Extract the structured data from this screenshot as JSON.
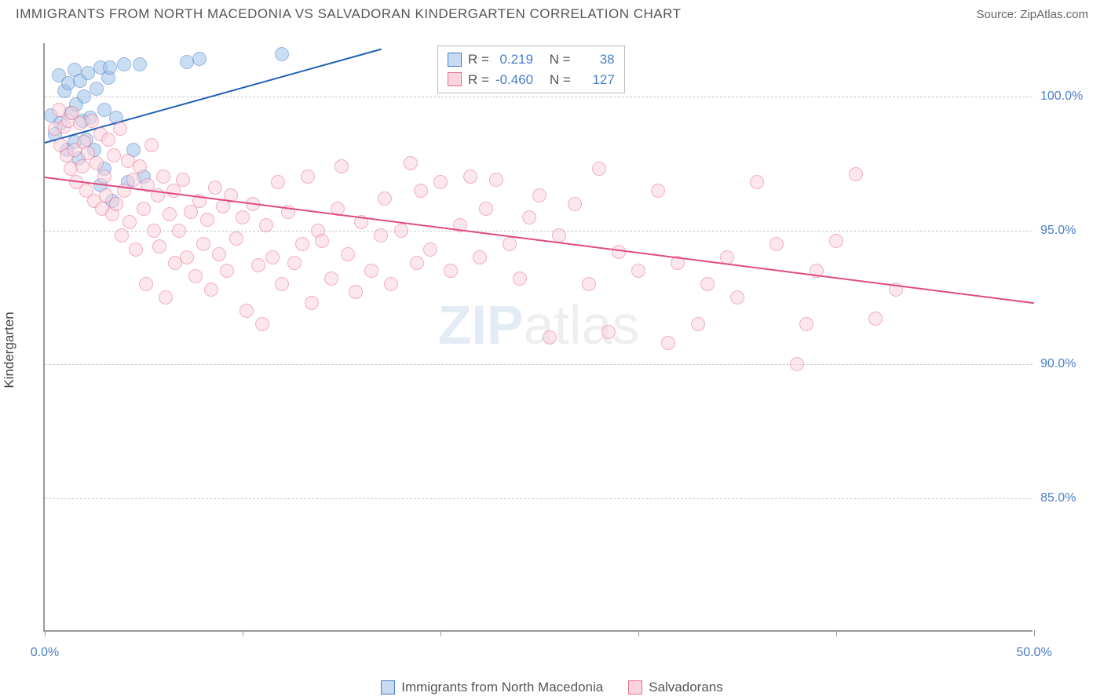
{
  "header": {
    "title": "IMMIGRANTS FROM NORTH MACEDONIA VS SALVADORAN KINDERGARTEN CORRELATION CHART",
    "source": "Source: ZipAtlas.com"
  },
  "chart": {
    "type": "scatter",
    "ylabel": "Kindergarten",
    "xlim": [
      0,
      50
    ],
    "ylim": [
      80,
      102
    ],
    "xtick_positions": [
      0,
      10,
      20,
      30,
      40,
      50
    ],
    "xtick_labels": {
      "first": "0.0%",
      "last": "50.0%"
    },
    "ytick_positions": [
      85,
      90,
      95,
      100
    ],
    "ytick_labels": [
      "85.0%",
      "90.0%",
      "95.0%",
      "100.0%"
    ],
    "grid_color": "#cccccc",
    "axis_color": "#999999",
    "background_color": "#ffffff",
    "series": [
      {
        "name": "Immigrants from North Macedonia",
        "color_fill": "#9ec3eb",
        "color_stroke": "#4a7ec7",
        "R": "0.219",
        "N": "38",
        "trend": {
          "x1": 0,
          "y1": 98.3,
          "x2": 17,
          "y2": 101.8,
          "color": "#1f5fb8"
        },
        "points": [
          [
            0.3,
            99.3
          ],
          [
            0.5,
            98.6
          ],
          [
            0.7,
            100.8
          ],
          [
            0.8,
            99.0
          ],
          [
            1.0,
            100.2
          ],
          [
            1.1,
            98.0
          ],
          [
            1.2,
            100.5
          ],
          [
            1.3,
            99.4
          ],
          [
            1.5,
            101.0
          ],
          [
            1.5,
            98.3
          ],
          [
            1.6,
            99.7
          ],
          [
            1.7,
            97.7
          ],
          [
            1.8,
            100.6
          ],
          [
            1.9,
            99.1
          ],
          [
            2.0,
            100.0
          ],
          [
            2.1,
            98.4
          ],
          [
            2.2,
            100.9
          ],
          [
            2.3,
            99.2
          ],
          [
            2.5,
            98.0
          ],
          [
            2.6,
            100.3
          ],
          [
            2.8,
            96.7
          ],
          [
            2.8,
            101.1
          ],
          [
            3.0,
            99.5
          ],
          [
            3.0,
            97.3
          ],
          [
            3.2,
            100.7
          ],
          [
            3.3,
            101.1
          ],
          [
            3.4,
            96.1
          ],
          [
            3.6,
            99.2
          ],
          [
            4.0,
            101.2
          ],
          [
            4.2,
            96.8
          ],
          [
            4.5,
            98.0
          ],
          [
            4.8,
            101.2
          ],
          [
            5.0,
            97.0
          ],
          [
            7.2,
            101.3
          ],
          [
            7.8,
            101.4
          ],
          [
            12.0,
            101.6
          ]
        ]
      },
      {
        "name": "Salvadorans",
        "color_fill": "#fbd4de",
        "color_stroke": "#e76f94",
        "R": "-0.460",
        "N": "127",
        "trend": {
          "x1": 0,
          "y1": 97.0,
          "x2": 50,
          "y2": 92.3,
          "color": "#e14b7b"
        },
        "points": [
          [
            0.5,
            98.8
          ],
          [
            0.7,
            99.5
          ],
          [
            0.8,
            98.2
          ],
          [
            1.0,
            98.9
          ],
          [
            1.1,
            97.8
          ],
          [
            1.2,
            99.1
          ],
          [
            1.3,
            97.3
          ],
          [
            1.4,
            99.4
          ],
          [
            1.5,
            98.0
          ],
          [
            1.6,
            96.8
          ],
          [
            1.8,
            99.0
          ],
          [
            1.9,
            97.4
          ],
          [
            2.0,
            98.3
          ],
          [
            2.1,
            96.5
          ],
          [
            2.2,
            97.9
          ],
          [
            2.4,
            99.1
          ],
          [
            2.5,
            96.1
          ],
          [
            2.6,
            97.5
          ],
          [
            2.8,
            98.6
          ],
          [
            2.9,
            95.8
          ],
          [
            3.0,
            97.0
          ],
          [
            3.1,
            96.3
          ],
          [
            3.2,
            98.4
          ],
          [
            3.4,
            95.6
          ],
          [
            3.5,
            97.8
          ],
          [
            3.6,
            96.0
          ],
          [
            3.8,
            98.8
          ],
          [
            3.9,
            94.8
          ],
          [
            4.0,
            96.5
          ],
          [
            4.2,
            97.6
          ],
          [
            4.3,
            95.3
          ],
          [
            4.5,
            96.9
          ],
          [
            4.6,
            94.3
          ],
          [
            4.8,
            97.4
          ],
          [
            5.0,
            95.8
          ],
          [
            5.1,
            93.0
          ],
          [
            5.2,
            96.7
          ],
          [
            5.4,
            98.2
          ],
          [
            5.5,
            95.0
          ],
          [
            5.7,
            96.3
          ],
          [
            5.8,
            94.4
          ],
          [
            6.0,
            97.0
          ],
          [
            6.1,
            92.5
          ],
          [
            6.3,
            95.6
          ],
          [
            6.5,
            96.5
          ],
          [
            6.6,
            93.8
          ],
          [
            6.8,
            95.0
          ],
          [
            7.0,
            96.9
          ],
          [
            7.2,
            94.0
          ],
          [
            7.4,
            95.7
          ],
          [
            7.6,
            93.3
          ],
          [
            7.8,
            96.1
          ],
          [
            8.0,
            94.5
          ],
          [
            8.2,
            95.4
          ],
          [
            8.4,
            92.8
          ],
          [
            8.6,
            96.6
          ],
          [
            8.8,
            94.1
          ],
          [
            9.0,
            95.9
          ],
          [
            9.2,
            93.5
          ],
          [
            9.4,
            96.3
          ],
          [
            9.7,
            94.7
          ],
          [
            10.0,
            95.5
          ],
          [
            10.2,
            92.0
          ],
          [
            10.5,
            96.0
          ],
          [
            10.8,
            93.7
          ],
          [
            11.0,
            91.5
          ],
          [
            11.2,
            95.2
          ],
          [
            11.5,
            94.0
          ],
          [
            11.8,
            96.8
          ],
          [
            12.0,
            93.0
          ],
          [
            12.3,
            95.7
          ],
          [
            12.6,
            93.8
          ],
          [
            13.0,
            94.5
          ],
          [
            13.3,
            97.0
          ],
          [
            13.5,
            92.3
          ],
          [
            13.8,
            95.0
          ],
          [
            14.0,
            94.6
          ],
          [
            14.5,
            93.2
          ],
          [
            14.8,
            95.8
          ],
          [
            15.0,
            97.4
          ],
          [
            15.3,
            94.1
          ],
          [
            15.7,
            92.7
          ],
          [
            16.0,
            95.3
          ],
          [
            16.5,
            93.5
          ],
          [
            17.0,
            94.8
          ],
          [
            17.2,
            96.2
          ],
          [
            17.5,
            93.0
          ],
          [
            18.0,
            95.0
          ],
          [
            18.5,
            97.5
          ],
          [
            18.8,
            93.8
          ],
          [
            19.0,
            96.5
          ],
          [
            19.5,
            94.3
          ],
          [
            20.0,
            96.8
          ],
          [
            20.5,
            93.5
          ],
          [
            21.0,
            95.2
          ],
          [
            21.5,
            97.0
          ],
          [
            22.0,
            94.0
          ],
          [
            22.3,
            95.8
          ],
          [
            22.8,
            96.9
          ],
          [
            23.5,
            94.5
          ],
          [
            24.0,
            93.2
          ],
          [
            24.5,
            95.5
          ],
          [
            25.0,
            96.3
          ],
          [
            25.5,
            91.0
          ],
          [
            26.0,
            94.8
          ],
          [
            26.8,
            96.0
          ],
          [
            27.5,
            93.0
          ],
          [
            28.0,
            97.3
          ],
          [
            28.5,
            91.2
          ],
          [
            29.0,
            94.2
          ],
          [
            30.0,
            93.5
          ],
          [
            31.0,
            96.5
          ],
          [
            31.5,
            90.8
          ],
          [
            32.0,
            93.8
          ],
          [
            33.0,
            91.5
          ],
          [
            33.5,
            93.0
          ],
          [
            34.5,
            94.0
          ],
          [
            35.0,
            92.5
          ],
          [
            36.0,
            96.8
          ],
          [
            37.0,
            94.5
          ],
          [
            38.0,
            90.0
          ],
          [
            38.5,
            91.5
          ],
          [
            39.0,
            93.5
          ],
          [
            40.0,
            94.6
          ],
          [
            41.0,
            97.1
          ],
          [
            42.0,
            91.7
          ],
          [
            43.0,
            92.8
          ]
        ]
      }
    ],
    "stat_box": {
      "R_label": "R =",
      "N_label": "N ="
    },
    "watermark": {
      "bold": "ZIP",
      "light": "atlas"
    }
  }
}
